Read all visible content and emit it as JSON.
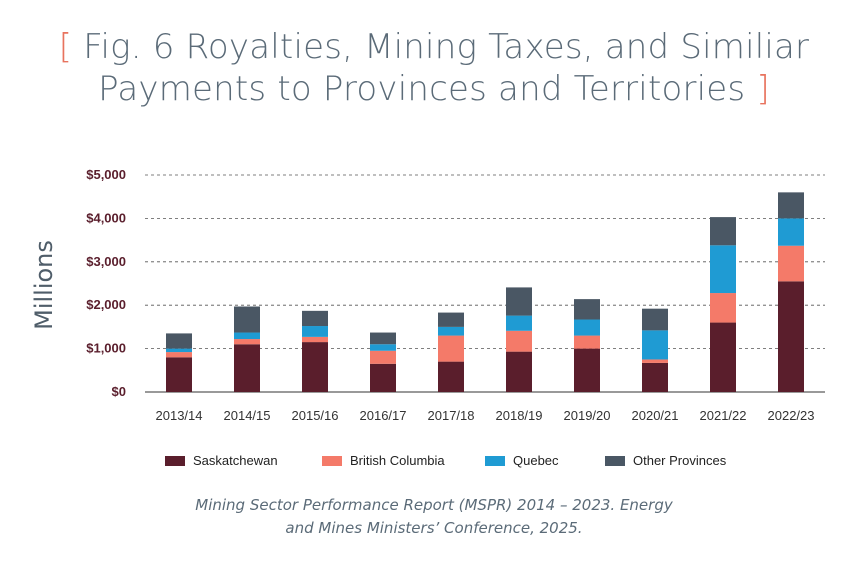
{
  "title": {
    "bracket_open": "[",
    "line1": "Fig. 6 Royalties, Mining Taxes, and Similiar",
    "line2": "Payments to Provinces and Territories",
    "bracket_close": "]"
  },
  "source": {
    "line1": "Mining Sector Performance Report (MSPR) 2014 – 2023. Energy",
    "line2": "and Mines Ministers’ Conference, 2025."
  },
  "colors": {
    "Saskatchewan": "#5a1e2c",
    "British Columbia": "#f47a69",
    "Quebec": "#1f9bd3",
    "Other Provinces": "#4a5764",
    "axis_text": "#5a1e2c",
    "bracket": "#e8735e",
    "title": "#5b6b78"
  },
  "chart_data": {
    "type": "bar",
    "stacked": true,
    "ylabel": "Millions",
    "ylim": [
      0,
      5000
    ],
    "yticks": [
      0,
      1000,
      2000,
      3000,
      4000,
      5000
    ],
    "ytick_labels": [
      "$0",
      "$1,000",
      "$2,000",
      "$3,000",
      "$4,000",
      "$5,000"
    ],
    "grid": "dashed horizontal",
    "legend_position": "bottom",
    "categories": [
      "2013/14",
      "2014/15",
      "2015/16",
      "2016/17",
      "2017/18",
      "2018/19",
      "2019/20",
      "2020/21",
      "2021/22",
      "2022/23"
    ],
    "series": [
      {
        "name": "Saskatchewan",
        "values": [
          800,
          1100,
          1150,
          650,
          700,
          930,
          1000,
          670,
          1600,
          2550
        ]
      },
      {
        "name": "British Columbia",
        "values": [
          120,
          120,
          120,
          300,
          600,
          480,
          300,
          80,
          680,
          820
        ]
      },
      {
        "name": "Quebec",
        "values": [
          80,
          150,
          250,
          150,
          200,
          350,
          370,
          670,
          1100,
          630
        ]
      },
      {
        "name": "Other Provinces",
        "values": [
          350,
          600,
          350,
          270,
          330,
          650,
          470,
          500,
          650,
          600
        ]
      }
    ]
  }
}
